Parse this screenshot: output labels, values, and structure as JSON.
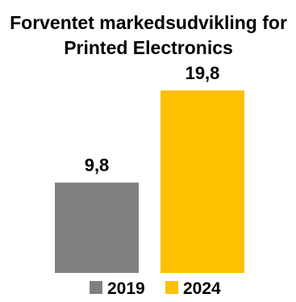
{
  "chart_data": {
    "type": "bar",
    "title_lines": [
      "Forventet markedsudvikling for",
      "Printed Electronics"
    ],
    "categories": [
      "2019",
      "2024"
    ],
    "values": [
      9.8,
      19.8
    ],
    "value_labels": [
      "9,8",
      "19,8"
    ],
    "colors": [
      "#808080",
      "#FFC000"
    ],
    "ylim": [
      0,
      21.2
    ],
    "xlabel": "",
    "ylabel": "",
    "grid": false,
    "legend": {
      "placement": "bottom",
      "entries": [
        {
          "label": "2019",
          "color": "#808080"
        },
        {
          "label": "2024",
          "color": "#FFC000"
        }
      ]
    }
  }
}
